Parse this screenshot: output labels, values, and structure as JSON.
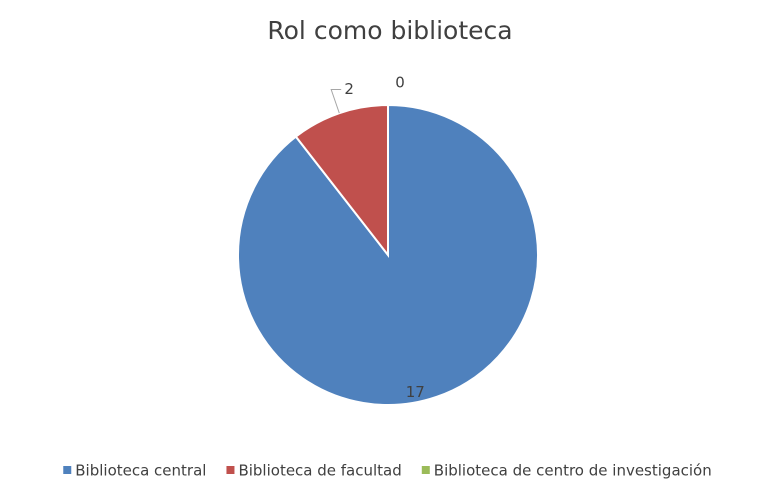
{
  "chart_data": {
    "type": "pie",
    "title": "Rol como biblioteca",
    "categories": [
      "Biblioteca central",
      "Biblioteca de facultad",
      "Biblioteca de centro de investigación"
    ],
    "values": [
      17,
      2,
      0
    ],
    "colors": [
      "#4f81bd",
      "#c0504d",
      "#9bbb59"
    ],
    "legend": "bottom"
  }
}
